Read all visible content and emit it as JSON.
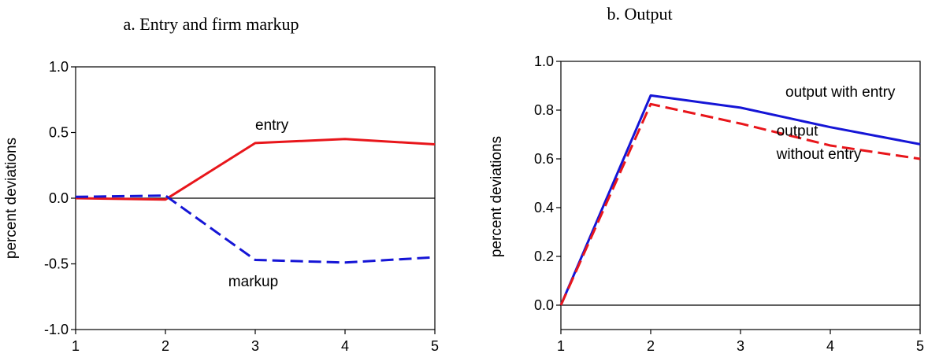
{
  "chart_data": [
    {
      "type": "line",
      "title": "a. Entry and firm markup",
      "xlabel": "",
      "ylabel": "percent deviations",
      "x": [
        1,
        2,
        3,
        4,
        5
      ],
      "xlim": [
        1,
        5
      ],
      "ylim": [
        -1.0,
        1.0
      ],
      "yticks": [
        -1.0,
        -0.5,
        0.0,
        0.5,
        1.0
      ],
      "ytick_labels": [
        "-1.0",
        "-0.5",
        "0.0",
        "0.5",
        "1.0"
      ],
      "grid": false,
      "zero_line": true,
      "series": [
        {
          "name": "entry",
          "values": [
            0.0,
            -0.01,
            0.42,
            0.45,
            0.41
          ],
          "color": "#e8161b",
          "style": "solid"
        },
        {
          "name": "markup",
          "values": [
            0.01,
            0.02,
            -0.47,
            -0.49,
            -0.45
          ],
          "color": "#1515d6",
          "style": "dashed"
        }
      ],
      "annotations": [
        {
          "text": "entry",
          "x": 3.0,
          "y": 0.52
        },
        {
          "text": "markup",
          "x": 2.7,
          "y": -0.67
        }
      ]
    },
    {
      "type": "line",
      "title": "b. Output",
      "xlabel": "",
      "ylabel": "percent deviations",
      "x": [
        1,
        2,
        3,
        4,
        5
      ],
      "xlim": [
        1,
        5
      ],
      "ylim": [
        -0.1,
        1.0
      ],
      "yticks": [
        0.0,
        0.2,
        0.4,
        0.6,
        0.8,
        1.0
      ],
      "ytick_labels": [
        "0.0",
        "0.2",
        "0.4",
        "0.6",
        "0.8",
        "1.0"
      ],
      "grid": false,
      "zero_line": true,
      "series": [
        {
          "name": "output with entry",
          "values": [
            0.0,
            0.86,
            0.81,
            0.73,
            0.66
          ],
          "color": "#1515d6",
          "style": "solid"
        },
        {
          "name": "output without entry",
          "values": [
            0.0,
            0.825,
            0.745,
            0.655,
            0.6
          ],
          "color": "#e8161b",
          "style": "dashed"
        }
      ],
      "annotations": [
        {
          "text": "output with entry",
          "x": 3.5,
          "y": 0.855
        },
        {
          "text": "output",
          "x": 3.4,
          "y": 0.695
        },
        {
          "text": "without entry",
          "x": 3.4,
          "y": 0.6
        }
      ]
    }
  ]
}
